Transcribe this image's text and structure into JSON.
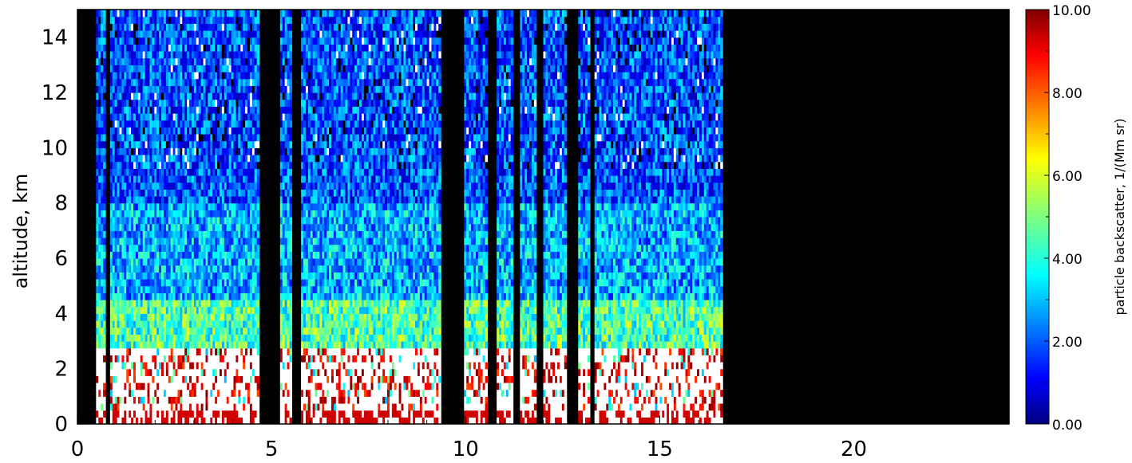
{
  "chart_data": {
    "type": "heatmap",
    "title": "",
    "xlabel": "",
    "ylabel": "altitude, km",
    "xlim": [
      0,
      24
    ],
    "ylim": [
      0,
      15
    ],
    "x_ticks": [
      "0",
      "5",
      "10",
      "15",
      "20"
    ],
    "x_tick_values": [
      0,
      5,
      10,
      15,
      20
    ],
    "y_ticks": [
      "0",
      "2",
      "4",
      "6",
      "8",
      "10",
      "12",
      "14"
    ],
    "y_tick_values": [
      0,
      2,
      4,
      6,
      8,
      10,
      12,
      14
    ],
    "data_extent_x": [
      0.3,
      16.6
    ],
    "no_data_color": "#000000",
    "saturated_color": "#ffffff",
    "colorbar": {
      "label": "particle backscatter, 1/(Mm sr)",
      "range": [
        0,
        10
      ],
      "tick_labels": [
        "0.00",
        "2.00",
        "4.00",
        "6.00",
        "8.00",
        "10.00"
      ],
      "tick_values": [
        0,
        2,
        4,
        6,
        8,
        10
      ],
      "colormap": "jet"
    },
    "layers": [
      {
        "from_km": 0.0,
        "to_km": 0.4,
        "value": 10
      },
      {
        "from_km": 0.4,
        "to_km": 2.6,
        "value": 9
      },
      {
        "from_km": 2.6,
        "to_km": 4.5,
        "value": 4.5
      },
      {
        "from_km": 4.5,
        "to_km": 8,
        "value": 3
      },
      {
        "from_km": 8,
        "to_km": 15,
        "value": 2
      }
    ],
    "gaps_x": [
      [
        0.3,
        0.45
      ],
      [
        0.7,
        0.8
      ],
      [
        4.65,
        5.2
      ],
      [
        5.5,
        5.75
      ],
      [
        9.3,
        9.9
      ],
      [
        10.55,
        10.75
      ],
      [
        11.2,
        11.4
      ],
      [
        11.8,
        12.0
      ],
      [
        12.6,
        12.85
      ],
      [
        13.15,
        13.3
      ]
    ]
  }
}
